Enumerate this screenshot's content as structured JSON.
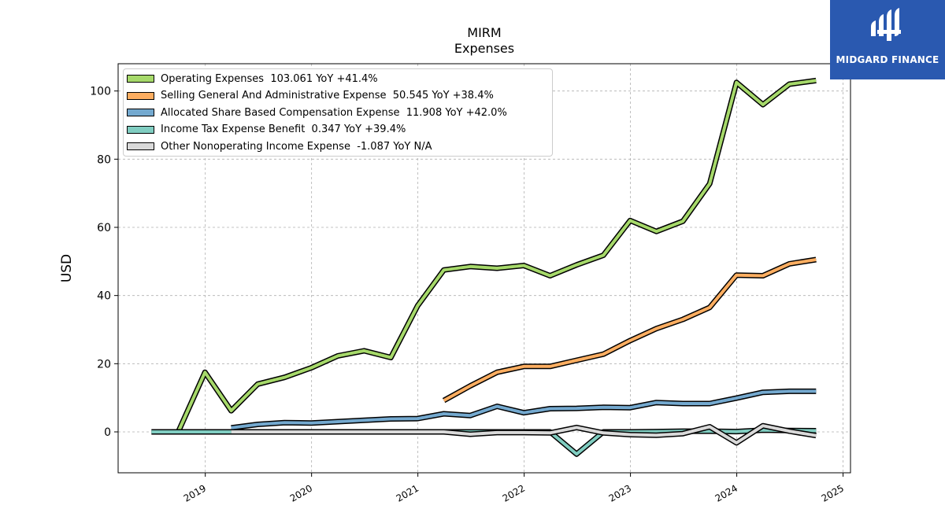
{
  "title": "MIRM",
  "subtitle": "Expenses",
  "logo": {
    "text": "MIDGARD FINANCE",
    "bg": "#2a59b0"
  },
  "chart_data": {
    "type": "line",
    "ylabel": "USD",
    "xlabel": "",
    "ylim": [
      -12,
      108
    ],
    "yticks": [
      0,
      20,
      40,
      60,
      80,
      100
    ],
    "xlim": [
      2018.18,
      2025.07
    ],
    "xticks": [
      2019,
      2020,
      2021,
      2022,
      2023,
      2024,
      2025
    ],
    "xtick_labels": [
      "2019",
      "2020",
      "2021",
      "2022",
      "2023",
      "2024",
      "2025"
    ],
    "grid": true,
    "legend_position": "top-left",
    "series": [
      {
        "name": "Operating Expenses",
        "legend": "Operating Expenses  103.061 YoY +41.4%",
        "color": "#a6d96a",
        "x": [
          "2018-09-30",
          "2018-12-31",
          "2019-03-31",
          "2019-06-30",
          "2019-09-30",
          "2019-12-31",
          "2020-03-31",
          "2020-06-30",
          "2020-09-30",
          "2020-12-31",
          "2021-03-31",
          "2021-06-30",
          "2021-09-30",
          "2021-12-31",
          "2022-03-31",
          "2022-06-30",
          "2022-09-30",
          "2022-12-31",
          "2023-03-31",
          "2023-06-30",
          "2023-09-30",
          "2023-12-31",
          "2024-03-31",
          "2024-06-30",
          "2024-09-30"
        ],
        "y": [
          0,
          17.5,
          6.2,
          14,
          16,
          18.8,
          22.3,
          23.8,
          21.8,
          37,
          47.5,
          48.5,
          48,
          48.8,
          45.8,
          49,
          51.8,
          62,
          58.8,
          61.8,
          72.8,
          102.5,
          96,
          102,
          103.061
        ]
      },
      {
        "name": "Selling General And Administrative Expense",
        "legend": "Selling General And Administrative Expense  50.545 YoY +38.4%",
        "color": "#fdae61",
        "x": [
          "2021-03-31",
          "2021-06-30",
          "2021-09-30",
          "2021-12-31",
          "2022-03-31",
          "2022-06-30",
          "2022-09-30",
          "2022-12-31",
          "2023-03-31",
          "2023-06-30",
          "2023-09-30",
          "2023-12-31",
          "2024-03-31",
          "2024-06-30",
          "2024-09-30"
        ],
        "y": [
          9.2,
          13.5,
          17.5,
          19.2,
          19.2,
          21,
          22.8,
          26.8,
          30.3,
          33,
          36.5,
          46,
          45.8,
          49.3,
          50.545
        ]
      },
      {
        "name": "Allocated Share Based Compensation Expense",
        "legend": "Allocated Share Based Compensation Expense  11.908 YoY +42.0%",
        "color": "#74a9cf",
        "x": [
          "2019-03-31",
          "2019-06-30",
          "2019-09-30",
          "2019-12-31",
          "2020-03-31",
          "2020-06-30",
          "2020-09-30",
          "2020-12-31",
          "2021-03-31",
          "2021-06-30",
          "2021-09-30",
          "2021-12-31",
          "2022-03-31",
          "2022-06-30",
          "2022-09-30",
          "2022-12-31",
          "2023-03-31",
          "2023-06-30",
          "2023-09-30",
          "2023-12-31",
          "2024-03-31",
          "2024-06-30",
          "2024-09-30"
        ],
        "y": [
          1.2,
          2.2,
          2.7,
          2.6,
          3,
          3.4,
          3.8,
          3.9,
          5.3,
          4.8,
          7.5,
          5.6,
          6.8,
          6.9,
          7.2,
          7.1,
          8.6,
          8.3,
          8.3,
          9.9,
          11.6,
          11.9,
          11.908
        ]
      },
      {
        "name": "Income Tax Expense Benefit",
        "legend": "Income Tax Expense Benefit  0.347 YoY +39.4%",
        "color": "#80cdc1",
        "x": [
          "2018-06-30",
          "2018-09-30",
          "2018-12-31",
          "2019-03-31",
          "2019-06-30",
          "2019-09-30",
          "2019-12-31",
          "2020-03-31",
          "2020-06-30",
          "2020-09-30",
          "2020-12-31",
          "2021-03-31",
          "2021-06-30",
          "2021-09-30",
          "2021-12-31",
          "2022-03-31",
          "2022-06-30",
          "2022-09-30",
          "2022-12-31",
          "2023-03-31",
          "2023-06-30",
          "2023-09-30",
          "2023-12-31",
          "2024-03-31",
          "2024-06-30",
          "2024-09-30"
        ],
        "y": [
          0,
          0,
          0,
          0,
          0,
          0,
          0,
          0,
          0,
          0,
          0,
          0,
          0,
          0,
          0,
          0,
          -6.5,
          0,
          0,
          0.1,
          0.2,
          0.2,
          0.1,
          0.5,
          0.4,
          0.347
        ]
      },
      {
        "name": "Other Nonoperating Income Expense",
        "legend": "Other Nonoperating Income Expense  -1.087 YoY N/A",
        "color": "#d9d9d9",
        "x": [
          "2019-03-31",
          "2019-06-30",
          "2019-09-30",
          "2019-12-31",
          "2020-03-31",
          "2020-06-30",
          "2020-09-30",
          "2020-12-31",
          "2021-03-31",
          "2021-06-30",
          "2021-09-30",
          "2021-12-31",
          "2022-03-31",
          "2022-06-30",
          "2022-09-30",
          "2022-12-31",
          "2023-03-31",
          "2023-06-30",
          "2023-09-30",
          "2023-12-31",
          "2024-03-31",
          "2024-06-30",
          "2024-09-30"
        ],
        "y": [
          0,
          0,
          0,
          0,
          0,
          0,
          0,
          0,
          0,
          -0.7,
          -0.2,
          -0.2,
          -0.3,
          1.3,
          -0.3,
          -0.8,
          -1,
          -0.5,
          1.5,
          -3.2,
          1.8,
          0.2,
          -1.087
        ]
      }
    ]
  }
}
